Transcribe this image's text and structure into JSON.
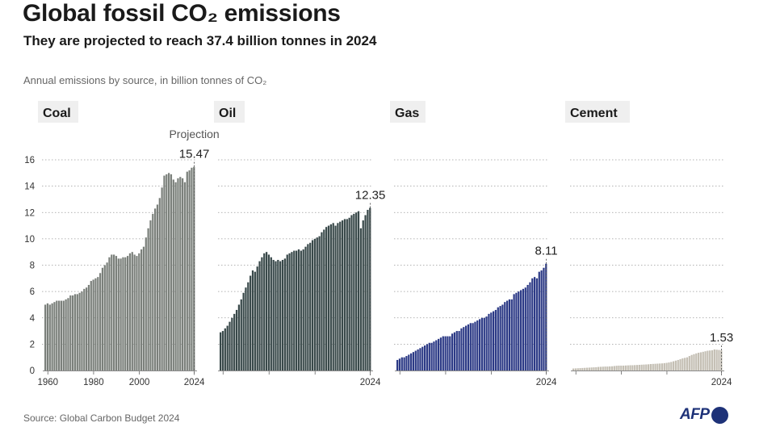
{
  "header": {
    "title": "Global fossil CO₂ emissions",
    "subtitle": "They are projected to reach 37.4 billion tonnes in 2024",
    "unit_note": "Annual emissions by source, in billion tonnes of CO₂"
  },
  "footer": {
    "source": "Source: Global Carbon Budget 2024",
    "logo_text": "AFP"
  },
  "colors": {
    "coal": "#7b807b",
    "oil": "#39494a",
    "gas": "#2c3a86",
    "cement": "#c4bfb4"
  },
  "chart_data": {
    "type": "bar",
    "title": "Global fossil CO₂ emissions",
    "ylabel": "Annual emissions by source, in billion tonnes of CO₂",
    "ylim": [
      0,
      16
    ],
    "yticks": [
      "0",
      "2",
      "4",
      "6",
      "8",
      "10",
      "12",
      "14",
      "16"
    ],
    "projection_label": "Projection",
    "x_start": 1959,
    "x_end": 2024,
    "series": [
      {
        "name": "Coal",
        "color_key": "coal",
        "end_label": "15.47",
        "xtick_labels": [
          "1960",
          "1980",
          "2000",
          "2024"
        ],
        "values": [
          5.0,
          5.1,
          5.0,
          5.1,
          5.2,
          5.3,
          5.3,
          5.3,
          5.3,
          5.4,
          5.5,
          5.7,
          5.7,
          5.8,
          5.8,
          5.9,
          6.0,
          6.2,
          6.3,
          6.5,
          6.8,
          6.9,
          7.0,
          7.1,
          7.4,
          7.8,
          8.0,
          8.2,
          8.6,
          8.8,
          8.8,
          8.7,
          8.5,
          8.5,
          8.6,
          8.6,
          8.7,
          8.9,
          9.0,
          8.8,
          8.7,
          8.9,
          9.2,
          9.4,
          10.1,
          10.8,
          11.4,
          11.9,
          12.3,
          12.6,
          13.1,
          13.9,
          14.8,
          14.9,
          15.0,
          14.9,
          14.5,
          14.3,
          14.6,
          14.7,
          14.6,
          14.3,
          15.1,
          15.2,
          15.4,
          15.47
        ]
      },
      {
        "name": "Oil",
        "color_key": "oil",
        "end_label": "12.35",
        "xtick_labels": [
          "",
          "",
          "",
          "2024"
        ],
        "values": [
          2.9,
          3.0,
          3.2,
          3.4,
          3.7,
          4.0,
          4.3,
          4.6,
          5.0,
          5.4,
          5.9,
          6.3,
          6.7,
          7.2,
          7.6,
          7.5,
          7.9,
          8.3,
          8.6,
          8.9,
          9.0,
          8.8,
          8.6,
          8.4,
          8.3,
          8.4,
          8.3,
          8.4,
          8.5,
          8.8,
          8.9,
          9.0,
          9.1,
          9.1,
          9.2,
          9.1,
          9.2,
          9.4,
          9.6,
          9.7,
          9.9,
          10.0,
          10.1,
          10.2,
          10.5,
          10.7,
          10.9,
          11.0,
          11.1,
          11.2,
          11.0,
          11.2,
          11.3,
          11.4,
          11.5,
          11.5,
          11.6,
          11.8,
          11.9,
          12.0,
          12.1,
          10.8,
          11.4,
          11.8,
          12.2,
          12.35
        ]
      },
      {
        "name": "Gas",
        "color_key": "gas",
        "end_label": "8.11",
        "xtick_labels": [
          "",
          "",
          "",
          "2024"
        ],
        "values": [
          0.8,
          0.9,
          1.0,
          1.0,
          1.1,
          1.2,
          1.3,
          1.4,
          1.5,
          1.6,
          1.7,
          1.8,
          1.9,
          2.0,
          2.1,
          2.1,
          2.2,
          2.3,
          2.4,
          2.5,
          2.6,
          2.6,
          2.6,
          2.6,
          2.8,
          2.9,
          3.0,
          3.0,
          3.2,
          3.3,
          3.4,
          3.5,
          3.6,
          3.6,
          3.7,
          3.8,
          3.9,
          4.0,
          4.0,
          4.1,
          4.3,
          4.4,
          4.5,
          4.6,
          4.8,
          4.9,
          5.0,
          5.2,
          5.3,
          5.4,
          5.4,
          5.8,
          5.9,
          6.0,
          6.1,
          6.2,
          6.3,
          6.5,
          6.7,
          7.0,
          7.1,
          7.0,
          7.5,
          7.6,
          7.8,
          8.11
        ]
      },
      {
        "name": "Cement",
        "color_key": "cement",
        "end_label": "1.53",
        "xtick_labels": [
          "",
          "",
          "",
          "2024"
        ],
        "values": [
          0.15,
          0.16,
          0.17,
          0.18,
          0.19,
          0.2,
          0.21,
          0.22,
          0.23,
          0.24,
          0.25,
          0.27,
          0.28,
          0.29,
          0.3,
          0.3,
          0.31,
          0.32,
          0.34,
          0.36,
          0.37,
          0.37,
          0.37,
          0.38,
          0.39,
          0.4,
          0.4,
          0.41,
          0.42,
          0.43,
          0.44,
          0.45,
          0.46,
          0.47,
          0.49,
          0.5,
          0.51,
          0.52,
          0.53,
          0.54,
          0.56,
          0.58,
          0.61,
          0.65,
          0.7,
          0.75,
          0.8,
          0.86,
          0.92,
          0.96,
          1.0,
          1.1,
          1.18,
          1.24,
          1.3,
          1.35,
          1.38,
          1.42,
          1.46,
          1.5,
          1.52,
          1.54,
          1.6,
          1.58,
          1.56,
          1.53
        ]
      }
    ]
  }
}
